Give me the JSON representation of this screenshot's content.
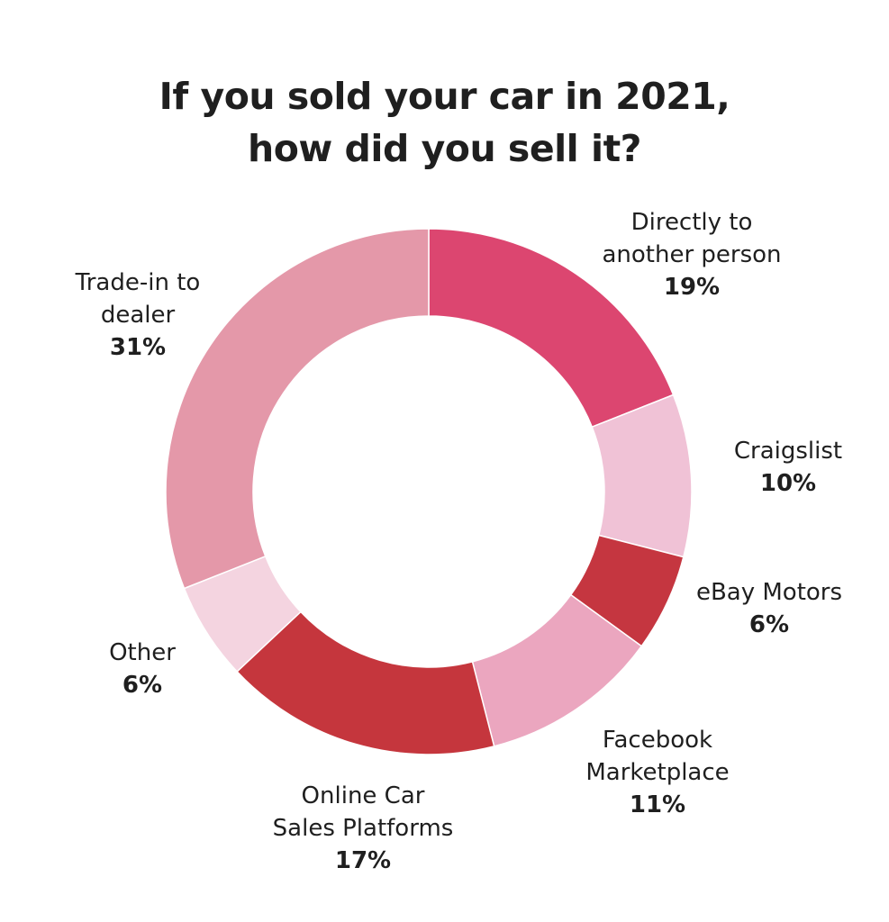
{
  "chart_data": {
    "type": "pie",
    "title": "If you sold your car in 2021, how did you sell it?",
    "title_lines": [
      "If you sold your car in 2021,",
      "how did you sell it?"
    ],
    "donut": true,
    "slices": [
      {
        "label": "Directly to another person",
        "label_lines": [
          "Directly to",
          "another person"
        ],
        "value": 19,
        "value_label": "19%",
        "color": "#dc4670"
      },
      {
        "label": "Craigslist",
        "label_lines": [
          "Craigslist"
        ],
        "value": 10,
        "value_label": "10%",
        "color": "#f0c2d6"
      },
      {
        "label": "eBay Motors",
        "label_lines": [
          "eBay Motors"
        ],
        "value": 6,
        "value_label": "6%",
        "color": "#c53640"
      },
      {
        "label": "Facebook Marketplace",
        "label_lines": [
          "Facebook",
          "Marketplace"
        ],
        "value": 11,
        "value_label": "11%",
        "color": "#eba6bf"
      },
      {
        "label": "Online Car Sales Platforms",
        "label_lines": [
          "Online Car",
          "Sales Platforms"
        ],
        "value": 17,
        "value_label": "17%",
        "color": "#c5363d"
      },
      {
        "label": "Other",
        "label_lines": [
          "Other"
        ],
        "value": 6,
        "value_label": "6%",
        "color": "#f4d4e0"
      },
      {
        "label": "Trade-in to dealer",
        "label_lines": [
          "Trade-in to",
          "dealer"
        ],
        "value": 31,
        "value_label": "31%",
        "color": "#e498a9"
      }
    ]
  }
}
